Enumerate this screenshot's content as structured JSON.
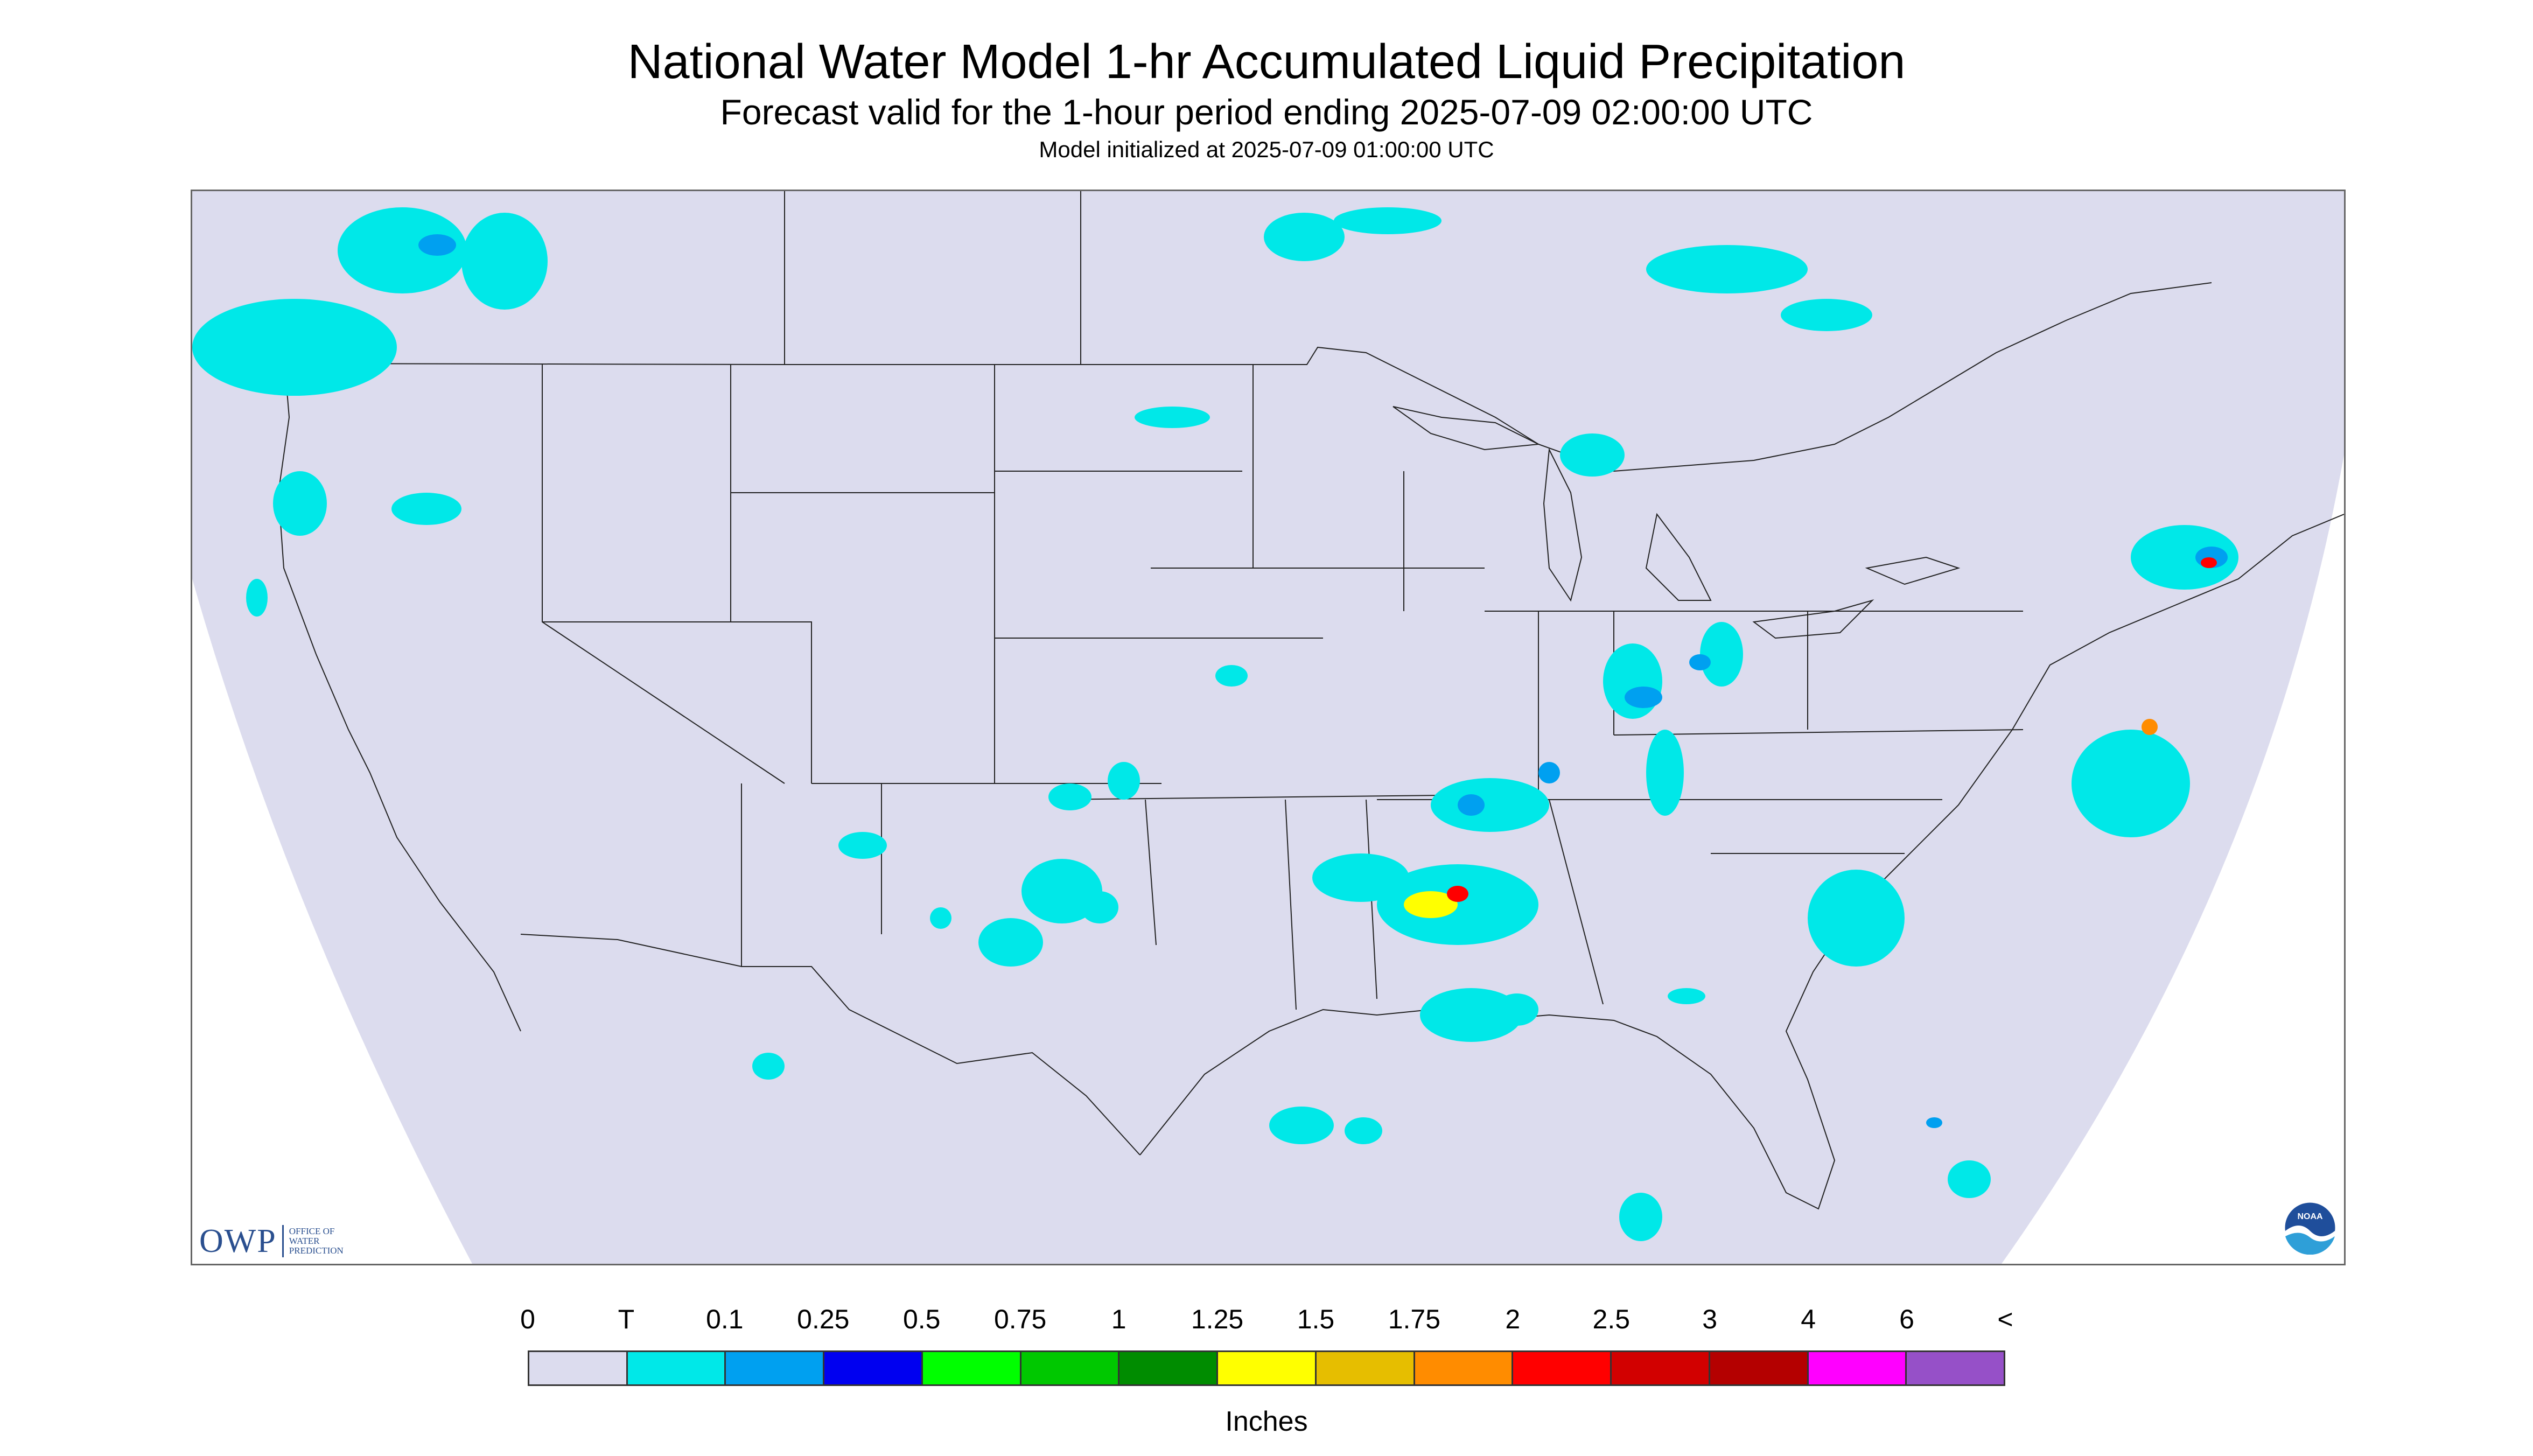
{
  "header": {
    "title": "National Water Model 1-hr Accumulated Liquid Precipitation",
    "subtitle": "Forecast valid for the 1-hour period ending 2025-07-09 02:00:00 UTC",
    "init_text": "Model initialized at 2025-07-09 01:00:00 UTC"
  },
  "map": {
    "projection_background": "#dcdcee",
    "outside_background": "#ffffff",
    "border_color": "#333333"
  },
  "logos": {
    "owp_mark": "OWP",
    "owp_text": "OFFICE OF\nWATER\nPREDICTION",
    "noaa_text": "NOAA"
  },
  "legend": {
    "labels": [
      "0",
      "T",
      "0.1",
      "0.25",
      "0.5",
      "0.75",
      "1",
      "1.25",
      "1.5",
      "1.75",
      "2",
      "2.5",
      "3",
      "4",
      "6",
      "<"
    ],
    "colors": [
      "#dcdcee",
      "#00e8e8",
      "#00a0f0",
      "#0000f0",
      "#00ff00",
      "#00c800",
      "#008c00",
      "#ffff00",
      "#e6be00",
      "#ff8c00",
      "#ff0000",
      "#d20000",
      "#b40000",
      "#ff00ff",
      "#9650c8"
    ],
    "unit": "Inches"
  }
}
